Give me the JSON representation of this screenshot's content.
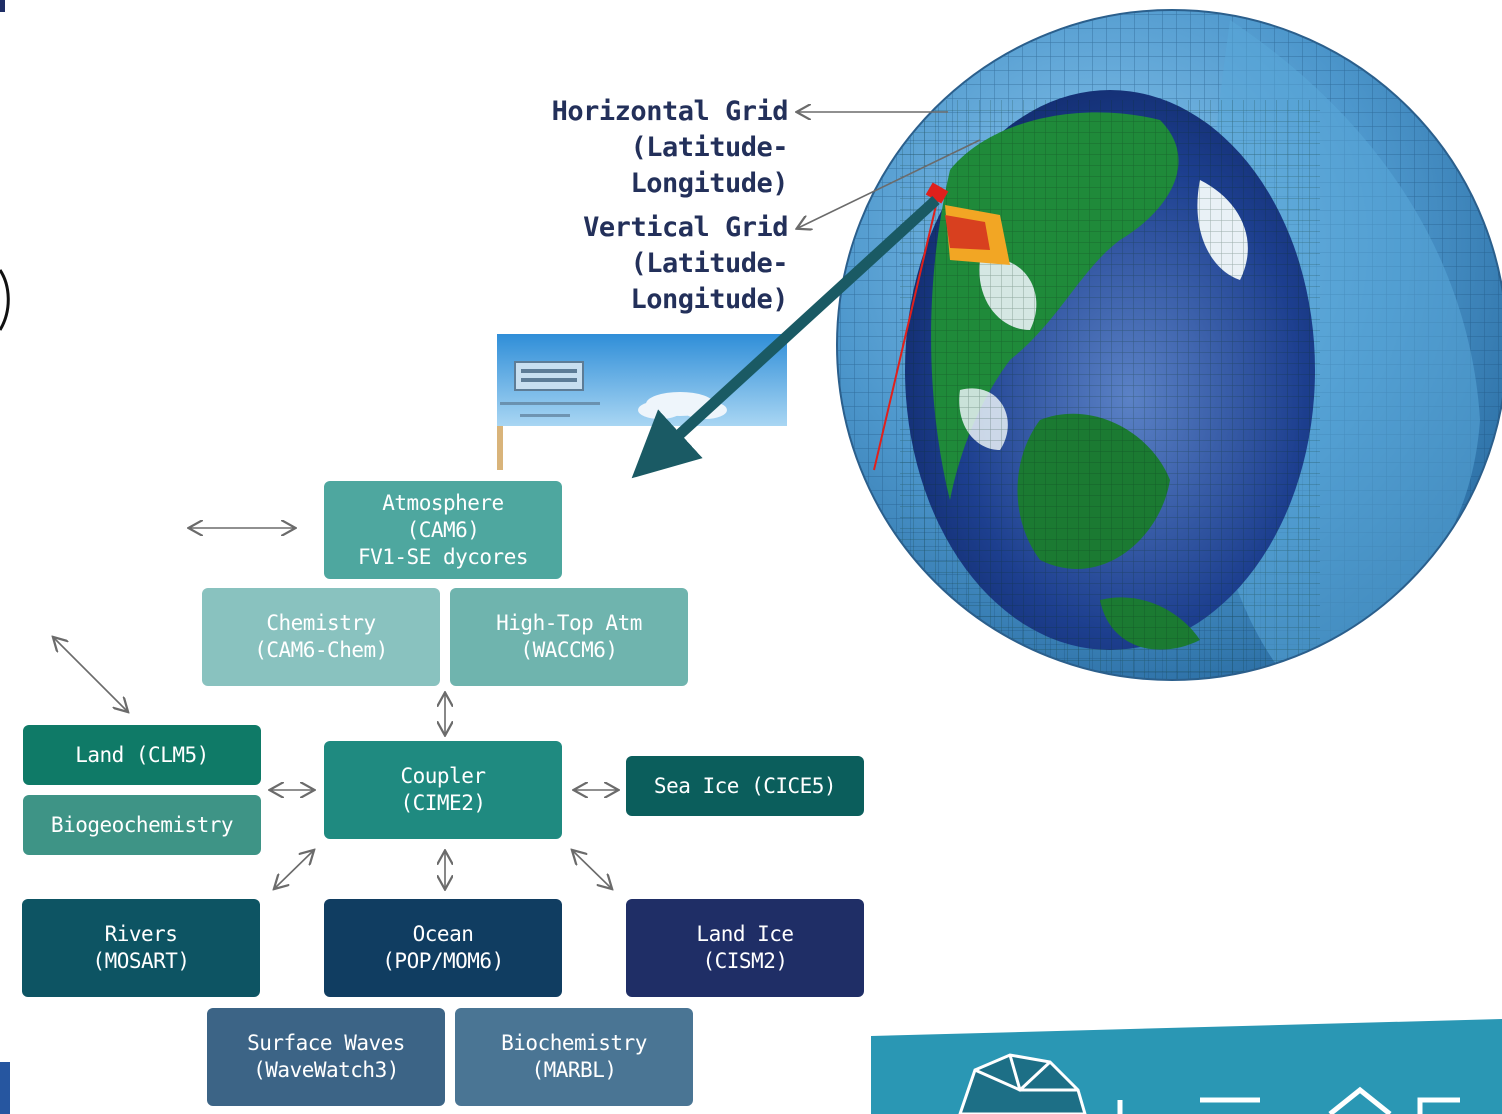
{
  "grid_labels": {
    "horizontal": "Horizontal Grid\n(Latitude-Longitude)",
    "vertical": "Vertical Grid\n(Latitude-Longitude)"
  },
  "components": {
    "atmosphere": "Atmosphere\n(CAM6)\nFV1-SE dycores",
    "chemistry": "Chemistry\n(CAM6-Chem)",
    "high_top": "High-Top Atm\n(WACCM6)",
    "land": "Land (CLM5)",
    "biogeochemistry": "Biogeochemistry",
    "coupler": "Coupler\n(CIME2)",
    "sea_ice": "Sea Ice (CICE5)",
    "rivers": "Rivers\n(MOSART)",
    "ocean": "Ocean\n(POP/MOM6)",
    "land_ice": "Land Ice\n(CISM2)",
    "surface_waves": "Surface Waves\n(WaveWatch3)",
    "biochemistry": "Biochemistry\n(MARBL)"
  },
  "colors": {
    "atmosphere": "#4ea79f",
    "chemistry": "#89c2bf",
    "high_top": "#6fb4ae",
    "land": "#0f7a67",
    "biogeochemistry": "#3e9486",
    "coupler": "#1f8a80",
    "sea_ice": "#0b5e5c",
    "rivers": "#0d5463",
    "ocean": "#103d61",
    "land_ice": "#1f2e66",
    "surface_waves": "#3c6486",
    "biochemistry": "#4a7594",
    "label_text": "#23305a"
  }
}
